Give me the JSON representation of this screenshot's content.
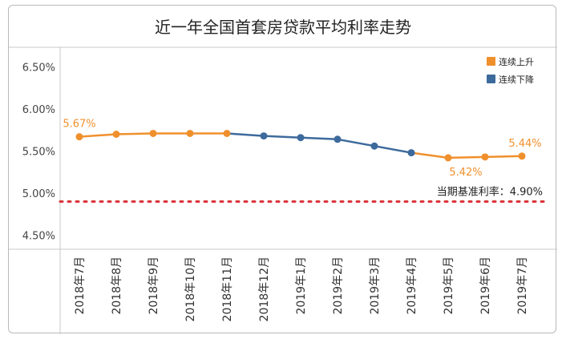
{
  "chart_data": {
    "type": "line",
    "title": "近一年全国首套房贷款平均利率走势",
    "xlabel": "",
    "ylabel": "",
    "ylim": [
      4.4,
      6.6
    ],
    "y_ticks": [
      "6.50%",
      "6.00%",
      "5.50%",
      "5.00%",
      "4.50%"
    ],
    "y_tick_values": [
      6.5,
      6.0,
      5.5,
      5.0,
      4.5
    ],
    "categories": [
      "2018年7月",
      "2018年8月",
      "2018年9月",
      "2018年10月",
      "2018年11月",
      "2018年12月",
      "2019年1月",
      "2019年2月",
      "2019年3月",
      "2019年4月",
      "2019年5月",
      "2019年6月",
      "2019年7月"
    ],
    "values": [
      5.67,
      5.7,
      5.71,
      5.71,
      5.71,
      5.68,
      5.66,
      5.64,
      5.56,
      5.48,
      5.42,
      5.43,
      5.44
    ],
    "segment_status": [
      "rise",
      "rise",
      "rise",
      "rise",
      "fall",
      "fall",
      "fall",
      "fall",
      "fall",
      "rise",
      "rise",
      "rise"
    ],
    "point_status": [
      "rise",
      "rise",
      "rise",
      "rise",
      "rise",
      "fall",
      "fall",
      "fall",
      "fall",
      "fall",
      "rise",
      "rise",
      "rise"
    ],
    "data_labels": [
      {
        "index": 0,
        "text": "5.67%"
      },
      {
        "index": 10,
        "text": "5.42%"
      },
      {
        "index": 12,
        "text": "5.44%"
      }
    ],
    "legend": {
      "placement": "top-right",
      "items": [
        {
          "key": "rise",
          "label": "连续上升",
          "color": "#f0902d"
        },
        {
          "key": "fall",
          "label": "连续下降",
          "color": "#3d6a9c"
        }
      ]
    },
    "reference_line": {
      "value": 4.9,
      "label": "当期基准利率：4.90%",
      "color": "#d9353a"
    },
    "colors": {
      "rise": "#f0902d",
      "fall": "#3d6a9c",
      "text": "#333333",
      "grid": "#c8c8c8"
    }
  }
}
